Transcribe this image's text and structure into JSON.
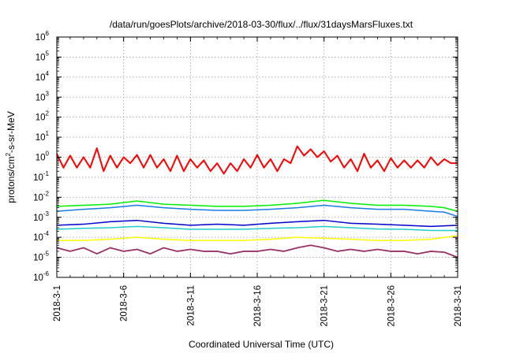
{
  "chart_data": {
    "type": "line",
    "title": "/data/run/goesPlots/archive/2018-03-30/flux/../flux/31daysMarsFluxes.txt",
    "xlabel": "Coordinated Universal Time (UTC)",
    "ylabel": "protons/cm2-s-sr-MeV",
    "ylabel_parts": {
      "before": "protons/cm",
      "sup": "2",
      "after": "-s-sr-MeV"
    },
    "xlim": [
      "2018-03-01",
      "2018-03-31"
    ],
    "xticks": [
      "2018-3-1",
      "2018-3-6",
      "2018-3-11",
      "2018-3-16",
      "2018-3-21",
      "2018-3-26",
      "2018-3-31"
    ],
    "yscale": "log",
    "ylim": [
      1e-06,
      1000000.0
    ],
    "yticks": [
      {
        "base": "10",
        "exp": "-6",
        "value": 1e-06
      },
      {
        "base": "10",
        "exp": "-5",
        "value": 1e-05
      },
      {
        "base": "10",
        "exp": "-4",
        "value": 0.0001
      },
      {
        "base": "10",
        "exp": "-3",
        "value": 0.001
      },
      {
        "base": "10",
        "exp": "-2",
        "value": 0.01
      },
      {
        "base": "10",
        "exp": "-1",
        "value": 0.1
      },
      {
        "base": "10",
        "exp": "0",
        "value": 1
      },
      {
        "base": "10",
        "exp": "1",
        "value": 10
      },
      {
        "base": "10",
        "exp": "2",
        "value": 100
      },
      {
        "base": "10",
        "exp": "3",
        "value": 1000
      },
      {
        "base": "10",
        "exp": "4",
        "value": 10000
      },
      {
        "base": "10",
        "exp": "5",
        "value": 100000
      },
      {
        "base": "10",
        "exp": "6",
        "value": 1000000
      }
    ],
    "grid": true,
    "legend": "none",
    "series": [
      {
        "color": "#ff0000",
        "width": 2,
        "x": [
          "2018-03-01",
          "2018-03-01T12:00",
          "2018-03-02",
          "2018-03-02T12:00",
          "2018-03-03",
          "2018-03-03T12:00",
          "2018-03-04",
          "2018-03-04T12:00",
          "2018-03-05",
          "2018-03-05T12:00",
          "2018-03-06",
          "2018-03-06T12:00",
          "2018-03-07",
          "2018-03-07T12:00",
          "2018-03-08",
          "2018-03-08T12:00",
          "2018-03-09",
          "2018-03-09T12:00",
          "2018-03-10",
          "2018-03-10T12:00",
          "2018-03-11",
          "2018-03-11T12:00",
          "2018-03-12",
          "2018-03-12T12:00",
          "2018-03-13",
          "2018-03-13T12:00",
          "2018-03-14",
          "2018-03-14T12:00",
          "2018-03-15",
          "2018-03-15T12:00",
          "2018-03-16",
          "2018-03-16T12:00",
          "2018-03-17",
          "2018-03-17T12:00",
          "2018-03-18",
          "2018-03-18T12:00",
          "2018-03-19",
          "2018-03-19T12:00",
          "2018-03-20",
          "2018-03-20T12:00",
          "2018-03-21",
          "2018-03-21T12:00",
          "2018-03-22",
          "2018-03-22T12:00",
          "2018-03-23",
          "2018-03-23T12:00",
          "2018-03-24",
          "2018-03-24T12:00",
          "2018-03-25",
          "2018-03-25T12:00",
          "2018-03-26",
          "2018-03-26T12:00",
          "2018-03-27",
          "2018-03-27T12:00",
          "2018-03-28",
          "2018-03-28T12:00",
          "2018-03-29",
          "2018-03-29T12:00",
          "2018-03-30",
          "2018-03-30T12:00",
          "2018-03-31"
        ],
        "values": [
          1.5,
          0.3,
          1.2,
          0.3,
          1.0,
          0.3,
          2.8,
          0.2,
          1.2,
          0.3,
          1.0,
          0.5,
          1.3,
          0.3,
          1.3,
          0.3,
          0.8,
          0.2,
          1.2,
          0.2,
          0.8,
          0.3,
          0.7,
          0.2,
          0.5,
          0.15,
          0.5,
          0.2,
          0.8,
          0.3,
          1.3,
          0.3,
          0.8,
          0.2,
          0.8,
          0.5,
          3.5,
          1.2,
          2.5,
          1.0,
          2.0,
          0.6,
          1.2,
          0.3,
          0.8,
          0.2,
          1.5,
          0.3,
          0.7,
          0.2,
          0.9,
          0.3,
          0.7,
          0.3,
          0.7,
          0.3,
          1.0,
          0.4,
          0.8,
          0.5,
          0.5
        ]
      },
      {
        "color": "#00ee00",
        "width": 1.5,
        "x": [
          "2018-03-01",
          "2018-03-03",
          "2018-03-05",
          "2018-03-07",
          "2018-03-09",
          "2018-03-11",
          "2018-03-13",
          "2018-03-15",
          "2018-03-17",
          "2018-03-19",
          "2018-03-21",
          "2018-03-23",
          "2018-03-25",
          "2018-03-27",
          "2018-03-29",
          "2018-03-30",
          "2018-03-31"
        ],
        "values": [
          0.0035,
          0.004,
          0.0045,
          0.0065,
          0.0045,
          0.004,
          0.0035,
          0.0035,
          0.004,
          0.005,
          0.007,
          0.005,
          0.004,
          0.004,
          0.0035,
          0.003,
          0.002
        ]
      },
      {
        "color": "#1a7ae6",
        "width": 1.5,
        "x": [
          "2018-03-01",
          "2018-03-03",
          "2018-03-05",
          "2018-03-07",
          "2018-03-09",
          "2018-03-11",
          "2018-03-13",
          "2018-03-15",
          "2018-03-17",
          "2018-03-19",
          "2018-03-21",
          "2018-03-23",
          "2018-03-25",
          "2018-03-27",
          "2018-03-29",
          "2018-03-30",
          "2018-03-31"
        ],
        "values": [
          0.002,
          0.0025,
          0.003,
          0.004,
          0.003,
          0.0025,
          0.0022,
          0.0022,
          0.0025,
          0.003,
          0.004,
          0.003,
          0.0025,
          0.0025,
          0.002,
          0.0018,
          0.0011
        ]
      },
      {
        "color": "#0000cc",
        "width": 1.5,
        "x": [
          "2018-03-01",
          "2018-03-03",
          "2018-03-05",
          "2018-03-07",
          "2018-03-09",
          "2018-03-11",
          "2018-03-13",
          "2018-03-15",
          "2018-03-17",
          "2018-03-19",
          "2018-03-21",
          "2018-03-23",
          "2018-03-25",
          "2018-03-27",
          "2018-03-29",
          "2018-03-31"
        ],
        "values": [
          0.0004,
          0.00045,
          0.0006,
          0.0007,
          0.0005,
          0.0004,
          0.00045,
          0.0004,
          0.0005,
          0.0006,
          0.0007,
          0.0005,
          0.00045,
          0.0004,
          0.00035,
          0.0004
        ]
      },
      {
        "color": "#22cccc",
        "width": 1.5,
        "x": [
          "2018-03-01",
          "2018-03-03",
          "2018-03-05",
          "2018-03-07",
          "2018-03-09",
          "2018-03-11",
          "2018-03-13",
          "2018-03-15",
          "2018-03-17",
          "2018-03-19",
          "2018-03-21",
          "2018-03-23",
          "2018-03-25",
          "2018-03-27",
          "2018-03-29",
          "2018-03-31"
        ],
        "values": [
          0.00025,
          0.00028,
          0.0003,
          0.00035,
          0.0003,
          0.00025,
          0.00025,
          0.00025,
          0.00028,
          0.0003,
          0.00035,
          0.0003,
          0.00026,
          0.00025,
          0.00022,
          0.00022
        ]
      },
      {
        "color": "#ffff00",
        "width": 1.5,
        "x": [
          "2018-03-01",
          "2018-03-03",
          "2018-03-05",
          "2018-03-07",
          "2018-03-09",
          "2018-03-11",
          "2018-03-13",
          "2018-03-15",
          "2018-03-17",
          "2018-03-19",
          "2018-03-21",
          "2018-03-23",
          "2018-03-25",
          "2018-03-27",
          "2018-03-29",
          "2018-03-31"
        ],
        "values": [
          7e-05,
          7e-05,
          8e-05,
          0.0001,
          8e-05,
          7e-05,
          7e-05,
          7e-05,
          8e-05,
          0.0001,
          9e-05,
          8e-05,
          7e-05,
          7e-05,
          8e-05,
          0.00012
        ]
      },
      {
        "color": "#993366",
        "width": 1.8,
        "x": [
          "2018-03-01",
          "2018-03-02",
          "2018-03-03",
          "2018-03-04",
          "2018-03-05",
          "2018-03-06",
          "2018-03-07",
          "2018-03-08",
          "2018-03-09",
          "2018-03-10",
          "2018-03-11",
          "2018-03-12",
          "2018-03-13",
          "2018-03-14",
          "2018-03-15",
          "2018-03-16",
          "2018-03-17",
          "2018-03-18",
          "2018-03-19",
          "2018-03-20",
          "2018-03-21",
          "2018-03-22",
          "2018-03-23",
          "2018-03-24",
          "2018-03-25",
          "2018-03-26",
          "2018-03-27",
          "2018-03-28",
          "2018-03-29",
          "2018-03-30",
          "2018-03-31"
        ],
        "values": [
          3e-05,
          2e-05,
          3e-05,
          1.5e-05,
          3e-05,
          2e-05,
          2.5e-05,
          1.5e-05,
          3e-05,
          2e-05,
          2.5e-05,
          2e-05,
          2e-05,
          1.5e-05,
          2e-05,
          2e-05,
          2.5e-05,
          2e-05,
          3e-05,
          4e-05,
          3e-05,
          2e-05,
          2.5e-05,
          2e-05,
          2.5e-05,
          2e-05,
          2e-05,
          1.5e-05,
          2e-05,
          1.8e-05,
          1e-05
        ]
      }
    ]
  }
}
